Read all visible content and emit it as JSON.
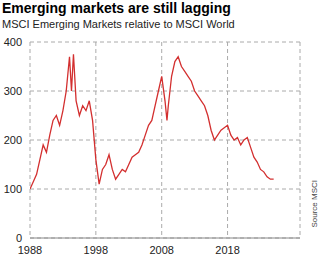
{
  "chart_data": {
    "type": "line",
    "title": "Emerging markets are still lagging",
    "subtitle": "MSCI Emerging Markets relative to MSCI World",
    "source": "Source MSCI",
    "x": [
      1988,
      1988.5,
      1989,
      1989.5,
      1990,
      1990.5,
      1991,
      1991.5,
      1992,
      1992.5,
      1993,
      1993.5,
      1994,
      1994.3,
      1994.6,
      1995,
      1995.5,
      1996,
      1996.5,
      1997,
      1997.5,
      1998,
      1998.5,
      1999,
      1999.5,
      2000,
      2000.5,
      2001,
      2001.5,
      2002,
      2002.5,
      2003,
      2003.5,
      2004,
      2004.5,
      2005,
      2005.5,
      2006,
      2006.5,
      2007,
      2007.5,
      2008,
      2008.5,
      2008.8,
      2009,
      2009.5,
      2010,
      2010.5,
      2011,
      2011.5,
      2012,
      2012.5,
      2013,
      2013.5,
      2014,
      2014.5,
      2015,
      2015.5,
      2016,
      2016.5,
      2017,
      2017.5,
      2018,
      2018.5,
      2019,
      2019.5,
      2020,
      2020.5,
      2021,
      2021.5,
      2022,
      2022.5,
      2023,
      2023.5,
      2024,
      2024.5,
      2025
    ],
    "values": [
      100,
      115,
      130,
      160,
      190,
      175,
      210,
      240,
      250,
      230,
      260,
      300,
      370,
      300,
      375,
      280,
      250,
      270,
      260,
      280,
      240,
      160,
      110,
      140,
      150,
      170,
      140,
      120,
      130,
      140,
      135,
      150,
      165,
      170,
      175,
      190,
      210,
      230,
      240,
      270,
      300,
      330,
      280,
      240,
      270,
      330,
      360,
      370,
      350,
      340,
      330,
      320,
      300,
      290,
      280,
      270,
      250,
      220,
      200,
      210,
      220,
      225,
      230,
      210,
      200,
      205,
      190,
      200,
      205,
      185,
      165,
      155,
      140,
      135,
      125,
      120,
      120
    ],
    "color": "#d32f2f",
    "xlim": [
      1988,
      2029
    ],
    "xticks": [
      1988,
      1998,
      2008,
      2018
    ],
    "ylim": [
      0,
      400
    ],
    "yticks": [
      0,
      100,
      200,
      300,
      400
    ],
    "grid": true
  }
}
